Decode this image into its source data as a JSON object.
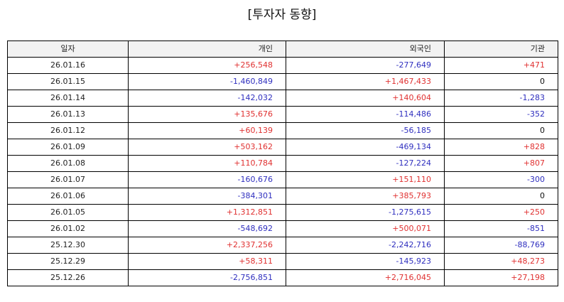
{
  "title": "[투자자 동향]",
  "table": {
    "headers": [
      "일자",
      "개인",
      "외국인",
      "기관"
    ],
    "rows": [
      [
        "26.01.16",
        "+256,548",
        "-277,649",
        "+471"
      ],
      [
        "26.01.15",
        "-1,460,849",
        "+1,467,433",
        "0"
      ],
      [
        "26.01.14",
        "-142,032",
        "+140,604",
        "-1,283"
      ],
      [
        "26.01.13",
        "+135,676",
        "-114,486",
        "-352"
      ],
      [
        "26.01.12",
        "+60,139",
        "-56,185",
        "0"
      ],
      [
        "26.01.09",
        "+503,162",
        "-469,134",
        "+828"
      ],
      [
        "26.01.08",
        "+110,784",
        "-127,224",
        "+807"
      ],
      [
        "26.01.07",
        "-160,676",
        "+151,110",
        "-300"
      ],
      [
        "26.01.06",
        "-384,301",
        "+385,793",
        "0"
      ],
      [
        "26.01.05",
        "+1,312,851",
        "-1,275,615",
        "+250"
      ],
      [
        "26.01.02",
        "-548,692",
        "+500,071",
        "-851"
      ],
      [
        "25.12.30",
        "+2,337,256",
        "-2,242,716",
        "-88,769"
      ],
      [
        "25.12.29",
        "+58,311",
        "-145,923",
        "+48,273"
      ],
      [
        "25.12.26",
        "-2,756,851",
        "+2,716,045",
        "+27,198"
      ]
    ]
  },
  "colors": {
    "positive": "#e03131",
    "negative": "#2f2fbf",
    "zero": "#111111",
    "header_bg": "#f2f2f2",
    "border": "#000000"
  }
}
